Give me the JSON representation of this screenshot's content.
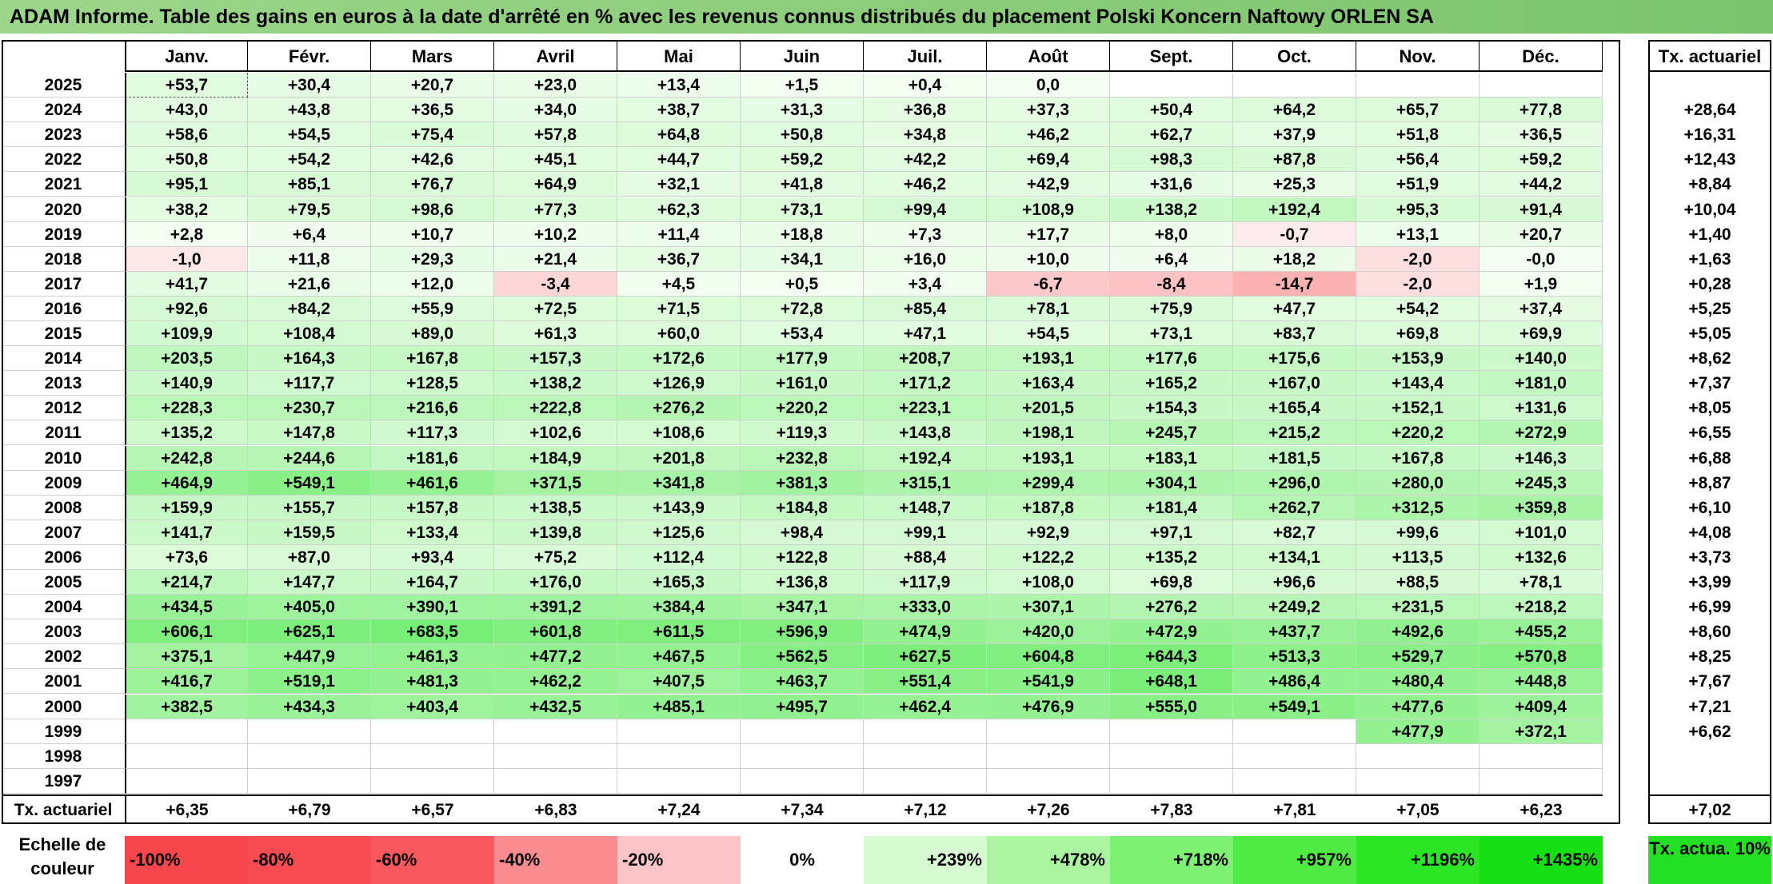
{
  "title": "ADAM Informe. Table des gains en euros à la date d'arrêté en % avec les revenus connus distribués du placement Polski Koncern Naftowy ORLEN SA",
  "months": [
    "Janv.",
    "Févr.",
    "Mars",
    "Avril",
    "Mai",
    "Juin",
    "Juil.",
    "Août",
    "Sept.",
    "Oct.",
    "Nov.",
    "Déc."
  ],
  "rate_header": "Tx. actuariel",
  "rows": [
    {
      "year": "2025",
      "values": [
        "+53,7",
        "+30,4",
        "+20,7",
        "+23,0",
        "+13,4",
        "+1,5",
        "+0,4",
        "0,0",
        "",
        "",
        "",
        ""
      ],
      "rate": ""
    },
    {
      "year": "2024",
      "values": [
        "+43,0",
        "+43,8",
        "+36,5",
        "+34,0",
        "+38,7",
        "+31,3",
        "+36,8",
        "+37,3",
        "+50,4",
        "+64,2",
        "+65,7",
        "+77,8"
      ],
      "rate": "+28,64"
    },
    {
      "year": "2023",
      "values": [
        "+58,6",
        "+54,5",
        "+75,4",
        "+57,8",
        "+64,8",
        "+50,8",
        "+34,8",
        "+46,2",
        "+62,7",
        "+37,9",
        "+51,8",
        "+36,5"
      ],
      "rate": "+16,31"
    },
    {
      "year": "2022",
      "values": [
        "+50,8",
        "+54,2",
        "+42,6",
        "+45,1",
        "+44,7",
        "+59,2",
        "+42,2",
        "+69,4",
        "+98,3",
        "+87,8",
        "+56,4",
        "+59,2"
      ],
      "rate": "+12,43"
    },
    {
      "year": "2021",
      "values": [
        "+95,1",
        "+85,1",
        "+76,7",
        "+64,9",
        "+32,1",
        "+41,8",
        "+46,2",
        "+42,9",
        "+31,6",
        "+25,3",
        "+51,9",
        "+44,2"
      ],
      "rate": "+8,84"
    },
    {
      "year": "2020",
      "values": [
        "+38,2",
        "+79,5",
        "+98,6",
        "+77,3",
        "+62,3",
        "+73,1",
        "+99,4",
        "+108,9",
        "+138,2",
        "+192,4",
        "+95,3",
        "+91,4"
      ],
      "rate": "+10,04"
    },
    {
      "year": "2019",
      "values": [
        "+2,8",
        "+6,4",
        "+10,7",
        "+10,2",
        "+11,4",
        "+18,8",
        "+7,3",
        "+17,7",
        "+8,0",
        "-0,7",
        "+13,1",
        "+20,7"
      ],
      "rate": "+1,40"
    },
    {
      "year": "2018",
      "values": [
        "-1,0",
        "+11,8",
        "+29,3",
        "+21,4",
        "+36,7",
        "+34,1",
        "+16,0",
        "+10,0",
        "+6,4",
        "+18,2",
        "-2,0",
        "-0,0"
      ],
      "rate": "+1,63"
    },
    {
      "year": "2017",
      "values": [
        "+41,7",
        "+21,6",
        "+12,0",
        "-3,4",
        "+4,5",
        "+0,5",
        "+3,4",
        "-6,7",
        "-8,4",
        "-14,7",
        "-2,0",
        "+1,9"
      ],
      "rate": "+0,28"
    },
    {
      "year": "2016",
      "values": [
        "+92,6",
        "+84,2",
        "+55,9",
        "+72,5",
        "+71,5",
        "+72,8",
        "+85,4",
        "+78,1",
        "+75,9",
        "+47,7",
        "+54,2",
        "+37,4"
      ],
      "rate": "+5,25"
    },
    {
      "year": "2015",
      "values": [
        "+109,9",
        "+108,4",
        "+89,0",
        "+61,3",
        "+60,0",
        "+53,4",
        "+47,1",
        "+54,5",
        "+73,1",
        "+83,7",
        "+69,8",
        "+69,9"
      ],
      "rate": "+5,05"
    },
    {
      "year": "2014",
      "values": [
        "+203,5",
        "+164,3",
        "+167,8",
        "+157,3",
        "+172,6",
        "+177,9",
        "+208,7",
        "+193,1",
        "+177,6",
        "+175,6",
        "+153,9",
        "+140,0"
      ],
      "rate": "+8,62"
    },
    {
      "year": "2013",
      "values": [
        "+140,9",
        "+117,7",
        "+128,5",
        "+138,2",
        "+126,9",
        "+161,0",
        "+171,2",
        "+163,4",
        "+165,2",
        "+167,0",
        "+143,4",
        "+181,0"
      ],
      "rate": "+7,37"
    },
    {
      "year": "2012",
      "values": [
        "+228,3",
        "+230,7",
        "+216,6",
        "+222,8",
        "+276,2",
        "+220,2",
        "+223,1",
        "+201,5",
        "+154,3",
        "+165,4",
        "+152,1",
        "+131,6"
      ],
      "rate": "+8,05"
    },
    {
      "year": "2011",
      "values": [
        "+135,2",
        "+147,8",
        "+117,3",
        "+102,6",
        "+108,6",
        "+119,3",
        "+143,8",
        "+198,1",
        "+245,7",
        "+215,2",
        "+220,2",
        "+272,9"
      ],
      "rate": "+6,55"
    },
    {
      "year": "2010",
      "values": [
        "+242,8",
        "+244,6",
        "+181,6",
        "+184,9",
        "+201,8",
        "+232,8",
        "+192,4",
        "+193,1",
        "+183,1",
        "+181,5",
        "+167,8",
        "+146,3"
      ],
      "rate": "+6,88"
    },
    {
      "year": "2009",
      "values": [
        "+464,9",
        "+549,1",
        "+461,6",
        "+371,5",
        "+341,8",
        "+381,3",
        "+315,1",
        "+299,4",
        "+304,1",
        "+296,0",
        "+280,0",
        "+245,3"
      ],
      "rate": "+8,87"
    },
    {
      "year": "2008",
      "values": [
        "+159,9",
        "+155,7",
        "+157,8",
        "+138,5",
        "+143,9",
        "+184,8",
        "+148,7",
        "+187,8",
        "+181,4",
        "+262,7",
        "+312,5",
        "+359,8"
      ],
      "rate": "+6,10"
    },
    {
      "year": "2007",
      "values": [
        "+141,7",
        "+159,5",
        "+133,4",
        "+139,8",
        "+125,6",
        "+98,4",
        "+99,1",
        "+92,9",
        "+97,1",
        "+82,7",
        "+99,6",
        "+101,0"
      ],
      "rate": "+4,08"
    },
    {
      "year": "2006",
      "values": [
        "+73,6",
        "+87,0",
        "+93,4",
        "+75,2",
        "+112,4",
        "+122,8",
        "+88,4",
        "+122,2",
        "+135,2",
        "+134,1",
        "+113,5",
        "+132,6"
      ],
      "rate": "+3,73"
    },
    {
      "year": "2005",
      "values": [
        "+214,7",
        "+147,7",
        "+164,7",
        "+176,0",
        "+165,3",
        "+136,8",
        "+117,9",
        "+108,0",
        "+69,8",
        "+96,6",
        "+88,5",
        "+78,1"
      ],
      "rate": "+3,99"
    },
    {
      "year": "2004",
      "values": [
        "+434,5",
        "+405,0",
        "+390,1",
        "+391,2",
        "+384,4",
        "+347,1",
        "+333,0",
        "+307,1",
        "+276,2",
        "+249,2",
        "+231,5",
        "+218,2"
      ],
      "rate": "+6,99"
    },
    {
      "year": "2003",
      "values": [
        "+606,1",
        "+625,1",
        "+683,5",
        "+601,8",
        "+611,5",
        "+596,9",
        "+474,9",
        "+420,0",
        "+472,9",
        "+437,7",
        "+492,6",
        "+455,2"
      ],
      "rate": "+8,60"
    },
    {
      "year": "2002",
      "values": [
        "+375,1",
        "+447,9",
        "+461,3",
        "+477,2",
        "+467,5",
        "+562,5",
        "+627,5",
        "+604,8",
        "+644,3",
        "+513,3",
        "+529,7",
        "+570,8"
      ],
      "rate": "+8,25"
    },
    {
      "year": "2001",
      "values": [
        "+416,7",
        "+519,1",
        "+481,3",
        "+462,2",
        "+407,5",
        "+463,7",
        "+551,4",
        "+541,9",
        "+648,1",
        "+486,4",
        "+480,4",
        "+448,8"
      ],
      "rate": "+7,67"
    },
    {
      "year": "2000",
      "values": [
        "+382,5",
        "+434,3",
        "+403,4",
        "+432,5",
        "+485,1",
        "+495,7",
        "+462,4",
        "+476,9",
        "+555,0",
        "+549,1",
        "+477,6",
        "+409,4"
      ],
      "rate": "+7,21"
    },
    {
      "year": "1999",
      "values": [
        "",
        "",
        "",
        "",
        "",
        "",
        "",
        "",
        "",
        "",
        "+477,9",
        "+372,1"
      ],
      "rate": "+6,62"
    },
    {
      "year": "1998",
      "values": [
        "",
        "",
        "",
        "",
        "",
        "",
        "",
        "",
        "",
        "",
        "",
        ""
      ],
      "rate": ""
    },
    {
      "year": "1997",
      "values": [
        "",
        "",
        "",
        "",
        "",
        "",
        "",
        "",
        "",
        "",
        "",
        ""
      ],
      "rate": ""
    }
  ],
  "footer": {
    "label": "Tx. actuariel",
    "values": [
      "+6,35",
      "+6,79",
      "+6,57",
      "+6,83",
      "+7,24",
      "+7,34",
      "+7,12",
      "+7,26",
      "+7,83",
      "+7,81",
      "+7,05",
      "+6,23"
    ],
    "rate": "+7,02"
  },
  "legend": {
    "label": "Echelle de couleur",
    "items": [
      {
        "text": "-100%",
        "color": "#f8474c"
      },
      {
        "text": "-80%",
        "color": "#f84c52"
      },
      {
        "text": "-60%",
        "color": "#f9585e"
      },
      {
        "text": "-40%",
        "color": "#fa8c90"
      },
      {
        "text": "-20%",
        "color": "#fcc4c6"
      },
      {
        "text": "0%",
        "color": "#ffffff"
      },
      {
        "text": "+239%",
        "color": "#d6fbd0"
      },
      {
        "text": "+478%",
        "color": "#abf5a0"
      },
      {
        "text": "+718%",
        "color": "#7ef072"
      },
      {
        "text": "+957%",
        "color": "#4fea42"
      },
      {
        "text": "+1196%",
        "color": "#2be625"
      },
      {
        "text": "+1435%",
        "color": "#16e014"
      }
    ],
    "rate_label": "Tx. actua. 10%",
    "rate_color": "#23e022"
  }
}
